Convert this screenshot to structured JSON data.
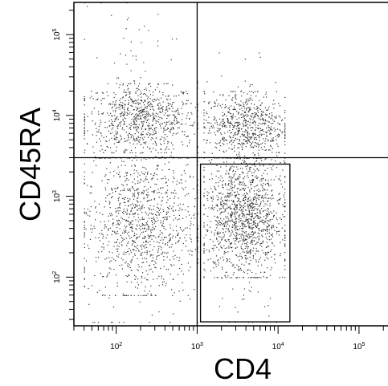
{
  "chart_data": {
    "type": "scatter",
    "xlabel": "CD4",
    "ylabel": "CD45RA",
    "x_scale": "log",
    "y_scale": "log",
    "xlim": [
      30,
      250000
    ],
    "ylim": [
      25,
      250000
    ],
    "x_ticks": [
      {
        "value": 100,
        "label": "10^2"
      },
      {
        "value": 1000,
        "label": "10^3"
      },
      {
        "value": 10000,
        "label": "10^4"
      },
      {
        "value": 100000,
        "label": "10^5"
      }
    ],
    "y_ticks": [
      {
        "value": 100,
        "label": "10^2"
      },
      {
        "value": 1000,
        "label": "10^3"
      },
      {
        "value": 10000,
        "label": "10^4"
      },
      {
        "value": 100000,
        "label": "10^5"
      }
    ],
    "quadrant_gate": {
      "x": 1000,
      "y": 3000
    },
    "rectangle_gate": {
      "x": [
        1100,
        14000
      ],
      "y": [
        28,
        2500
      ]
    },
    "populations": [
      {
        "x_range": [
          40,
          1000
        ],
        "y_range": [
          3500,
          25000
        ],
        "count": 750
      },
      {
        "x_range": [
          40,
          1000
        ],
        "y_range": [
          60,
          3000
        ],
        "count": 950
      },
      {
        "x_range": [
          40,
          1000
        ],
        "y_range": [
          28,
          250000
        ],
        "count": 300
      },
      {
        "x_range": [
          1200,
          12000
        ],
        "y_range": [
          3000,
          20000
        ],
        "count": 650
      },
      {
        "x_range": [
          1200,
          12000
        ],
        "y_range": [
          100,
          3000
        ],
        "count": 1200
      },
      {
        "x_range": [
          1200,
          12000
        ],
        "y_range": [
          28,
          60000
        ],
        "count": 250
      }
    ],
    "grid": false,
    "legend": "none"
  }
}
